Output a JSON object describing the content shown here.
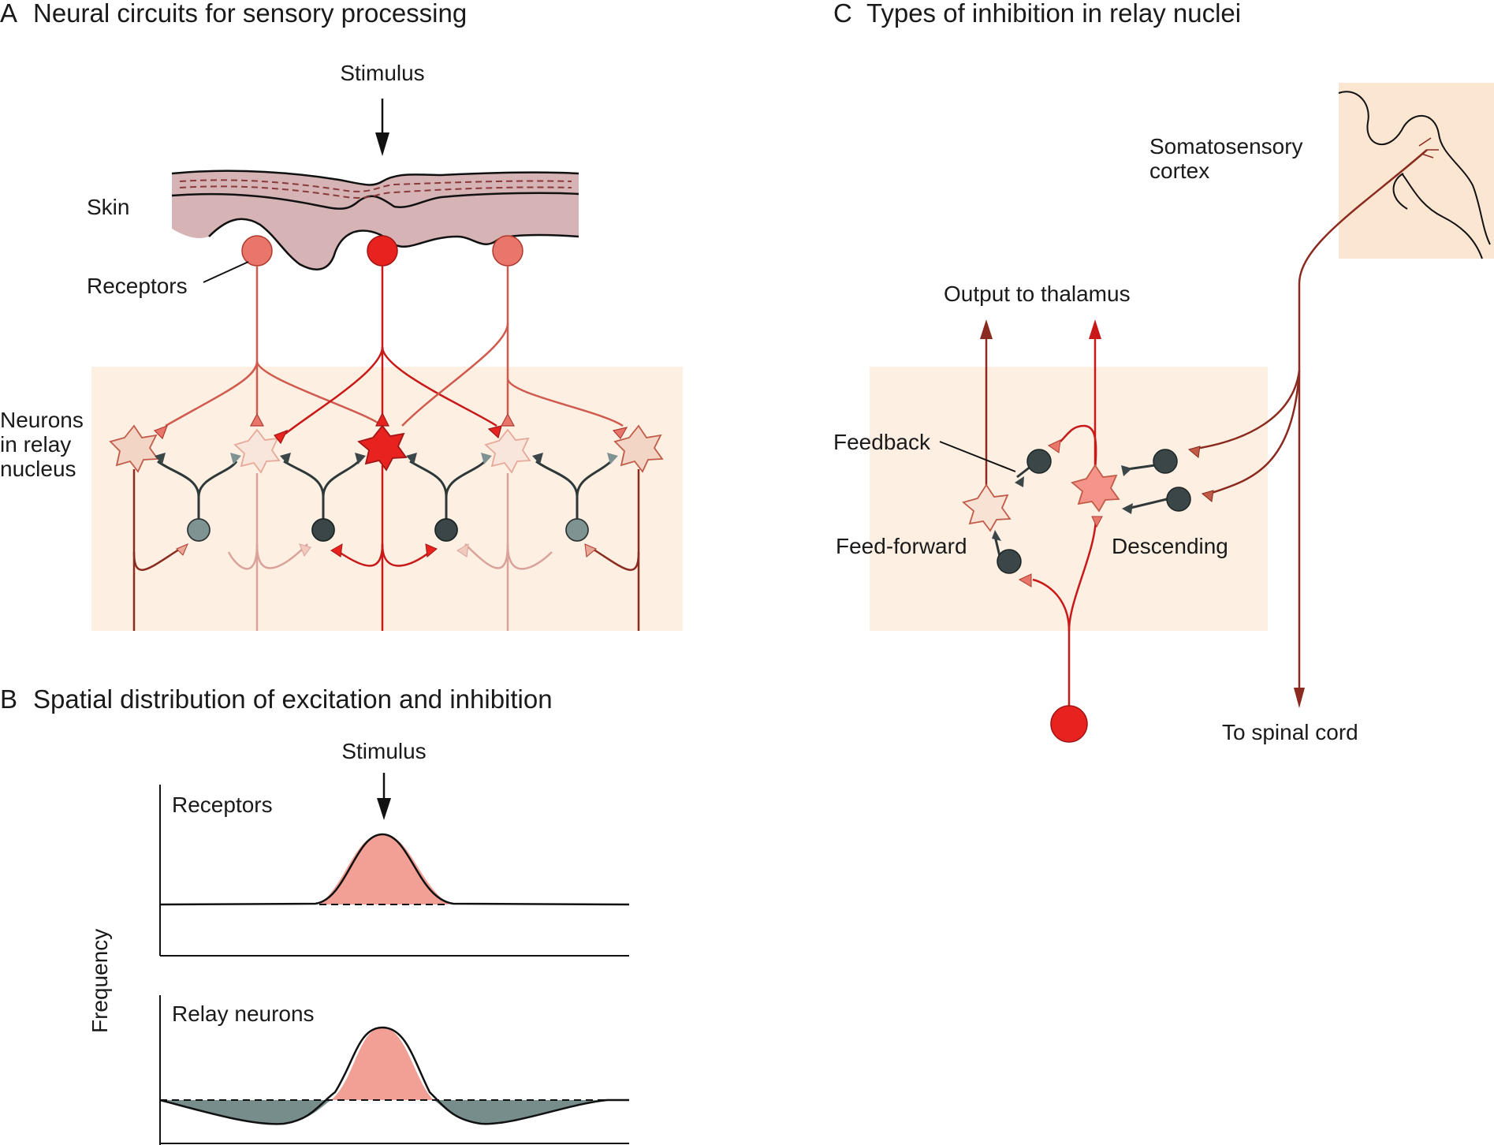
{
  "panel_a": {
    "letter": "A",
    "title": "Neural circuits for sensory processing",
    "stimulus": "Stimulus",
    "skin": "Skin",
    "receptors": "Receptors",
    "relay_line1": "Neurons",
    "relay_line2": "in relay",
    "relay_line3": "nucleus"
  },
  "panel_b": {
    "letter": "B",
    "title": "Spatial distribution of excitation and inhibition",
    "stimulus": "Stimulus",
    "top_plot_label": "Receptors",
    "bottom_plot_label": "Relay neurons",
    "ylabel": "Frequency"
  },
  "panel_c": {
    "letter": "C",
    "title": "Types of inhibition in relay nuclei",
    "cortex_line1": "Somatosensory",
    "cortex_line2": "cortex",
    "output": "Output to thalamus",
    "feedback": "Feedback",
    "feed_forward": "Feed-forward",
    "descending": "Descending",
    "spinal": "To spinal cord"
  },
  "colors": {
    "nucleus_bg": "#fdf0e3",
    "skin_fill": "#d6b3b5",
    "red": "#e8231f",
    "salmon": "#e8766b",
    "light_salmon": "#f2c9bd",
    "dark_red": "#8b2a1e",
    "inhib_dark": "#3b4648",
    "inhib_gray": "#7f9393",
    "curve_fill": "#f2a096",
    "inhib_fill": "#778d8c"
  }
}
